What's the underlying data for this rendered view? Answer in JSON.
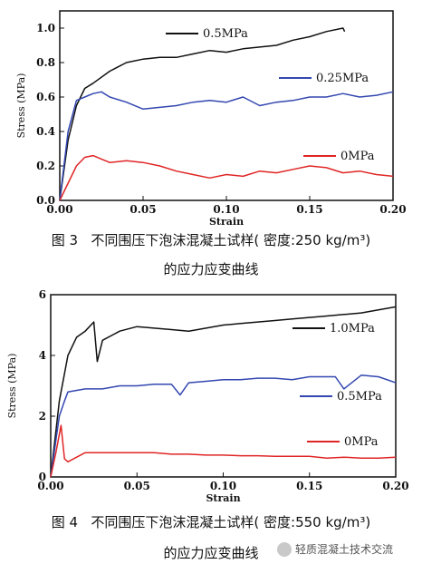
{
  "chart_data": [
    {
      "type": "line",
      "xlabel": "Strain",
      "ylabel": "Stress (MPa)",
      "xlim": [
        0,
        0.2
      ],
      "ylim": [
        0,
        1.1
      ],
      "xticks": [
        "0.00",
        "0.05",
        "0.10",
        "0.15",
        "0.20"
      ],
      "yticks": [
        "0.0",
        "0.2",
        "0.4",
        "0.6",
        "0.8",
        "1.0"
      ],
      "series": [
        {
          "name": "0.5MPa",
          "color": "#111111",
          "x": [
            0,
            0.005,
            0.01,
            0.015,
            0.02,
            0.03,
            0.04,
            0.05,
            0.06,
            0.07,
            0.08,
            0.09,
            0.1,
            0.11,
            0.12,
            0.13,
            0.14,
            0.15,
            0.16,
            0.17,
            0.171
          ],
          "y": [
            0,
            0.35,
            0.55,
            0.65,
            0.68,
            0.75,
            0.8,
            0.82,
            0.83,
            0.83,
            0.85,
            0.87,
            0.86,
            0.88,
            0.89,
            0.9,
            0.93,
            0.95,
            0.98,
            1.0,
            0.98
          ]
        },
        {
          "name": "0.25MPa",
          "color": "#3347b0",
          "x": [
            0,
            0.005,
            0.01,
            0.015,
            0.02,
            0.025,
            0.03,
            0.04,
            0.05,
            0.06,
            0.07,
            0.08,
            0.09,
            0.1,
            0.11,
            0.12,
            0.13,
            0.14,
            0.15,
            0.16,
            0.17,
            0.18,
            0.19,
            0.2
          ],
          "y": [
            0,
            0.4,
            0.58,
            0.6,
            0.62,
            0.63,
            0.6,
            0.57,
            0.53,
            0.54,
            0.55,
            0.57,
            0.58,
            0.57,
            0.6,
            0.55,
            0.57,
            0.58,
            0.6,
            0.6,
            0.62,
            0.6,
            0.61,
            0.63
          ]
        },
        {
          "name": "0MPa",
          "color": "#e02525",
          "x": [
            0,
            0.005,
            0.01,
            0.015,
            0.02,
            0.025,
            0.03,
            0.04,
            0.05,
            0.06,
            0.07,
            0.08,
            0.09,
            0.1,
            0.11,
            0.12,
            0.13,
            0.14,
            0.15,
            0.16,
            0.17,
            0.18,
            0.19,
            0.2
          ],
          "y": [
            0,
            0.1,
            0.2,
            0.25,
            0.26,
            0.24,
            0.22,
            0.23,
            0.22,
            0.2,
            0.17,
            0.15,
            0.13,
            0.15,
            0.14,
            0.17,
            0.16,
            0.18,
            0.2,
            0.19,
            0.16,
            0.17,
            0.15,
            0.14
          ]
        }
      ],
      "caption_fig": "图 3",
      "caption_text": "不同围压下泡沫混凝土试样( 密度:250 kg/m³)",
      "caption_line2": "的应力应变曲线"
    },
    {
      "type": "line",
      "xlabel": "Strain",
      "ylabel": "Stress (MPa)",
      "xlim": [
        0,
        0.2
      ],
      "ylim": [
        0,
        6
      ],
      "xticks": [
        "0.00",
        "0.05",
        "0.10",
        "0.15",
        "0.20"
      ],
      "yticks": [
        "0",
        "2",
        "4",
        "6"
      ],
      "series": [
        {
          "name": "1.0MPa",
          "color": "#111111",
          "x": [
            0,
            0.005,
            0.01,
            0.015,
            0.02,
            0.025,
            0.027,
            0.03,
            0.04,
            0.05,
            0.06,
            0.07,
            0.08,
            0.09,
            0.1,
            0.11,
            0.12,
            0.13,
            0.14,
            0.15,
            0.16,
            0.17,
            0.18,
            0.19,
            0.2
          ],
          "y": [
            0,
            2.5,
            4.0,
            4.6,
            4.8,
            5.1,
            3.8,
            4.5,
            4.8,
            4.95,
            4.9,
            4.85,
            4.8,
            4.9,
            5.0,
            5.05,
            5.1,
            5.15,
            5.2,
            5.25,
            5.3,
            5.35,
            5.4,
            5.5,
            5.6
          ]
        },
        {
          "name": "0.5MPa",
          "color": "#3347b0",
          "x": [
            0,
            0.005,
            0.008,
            0.01,
            0.02,
            0.03,
            0.04,
            0.05,
            0.06,
            0.07,
            0.075,
            0.08,
            0.09,
            0.1,
            0.11,
            0.12,
            0.13,
            0.14,
            0.15,
            0.165,
            0.17,
            0.18,
            0.19,
            0.2
          ],
          "y": [
            0,
            2.0,
            2.5,
            2.8,
            2.9,
            2.9,
            3.0,
            3.0,
            3.05,
            3.05,
            2.7,
            3.1,
            3.15,
            3.2,
            3.2,
            3.25,
            3.25,
            3.2,
            3.3,
            3.3,
            2.9,
            3.35,
            3.3,
            3.1
          ]
        },
        {
          "name": "0MPa",
          "color": "#e02525",
          "x": [
            0,
            0.003,
            0.006,
            0.008,
            0.01,
            0.02,
            0.03,
            0.04,
            0.05,
            0.06,
            0.07,
            0.08,
            0.09,
            0.1,
            0.11,
            0.12,
            0.13,
            0.14,
            0.15,
            0.16,
            0.17,
            0.18,
            0.19,
            0.2
          ],
          "y": [
            0,
            0.8,
            1.7,
            0.6,
            0.5,
            0.8,
            0.8,
            0.8,
            0.8,
            0.8,
            0.75,
            0.75,
            0.72,
            0.72,
            0.7,
            0.7,
            0.68,
            0.68,
            0.68,
            0.62,
            0.65,
            0.62,
            0.62,
            0.65
          ]
        }
      ],
      "caption_fig": "图 4",
      "caption_text": "不同围压下泡沫混凝土试样( 密度:550 kg/m³)",
      "caption_line2": "的应力应变曲线"
    }
  ],
  "watermark": "轻质混凝土技术交流"
}
